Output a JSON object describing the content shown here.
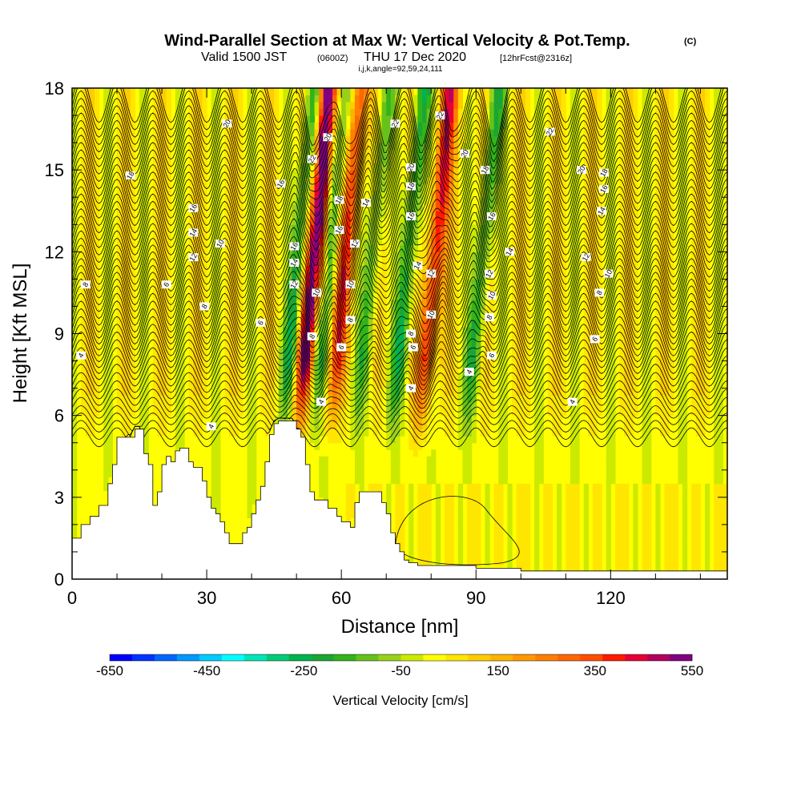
{
  "title": {
    "main": "Wind-Parallel Section at Max W: Vertical Velocity & Pot.Temp.",
    "main_units": "(C)",
    "valid_a": "Valid 1500 JST",
    "valid_b": "(0600Z)",
    "valid_c": "THU 17 Dec 2020",
    "valid_d": "[12hrFcst@2316z]",
    "indices": "i,j,k,angle=92,59,24,111"
  },
  "chart_data": {
    "type": "heatmap",
    "xlabel": "Distance [nm]",
    "ylabel": "Height [Kft MSL]",
    "xlim": [
      0,
      146
    ],
    "ylim": [
      0,
      18
    ],
    "x_ticks": [
      "0",
      "30",
      "60",
      "90",
      "120"
    ],
    "x_tick_values": [
      0,
      30,
      60,
      90,
      120
    ],
    "y_ticks": [
      "0",
      "3",
      "6",
      "9",
      "12",
      "15",
      "18"
    ],
    "y_tick_values": [
      0,
      3,
      6,
      9,
      12,
      15,
      18
    ],
    "terrain": {
      "distance_nm": [
        0,
        2,
        4,
        6,
        8,
        9,
        10,
        11,
        12,
        13,
        14,
        15,
        16,
        17,
        18,
        19,
        20,
        21,
        22,
        23,
        24,
        25,
        26,
        27,
        28,
        29,
        30,
        31,
        32,
        33,
        34,
        35,
        36,
        37,
        38,
        39,
        40,
        41,
        42,
        43,
        44,
        45,
        46,
        47,
        48,
        49,
        50,
        51,
        52,
        53,
        54,
        55,
        56,
        57,
        58,
        59,
        60,
        61,
        62,
        63,
        64,
        65,
        66,
        67,
        68,
        69,
        70,
        71,
        72,
        73,
        74,
        75,
        76,
        77,
        78,
        79,
        80,
        84,
        90,
        94,
        96,
        100,
        110,
        120,
        130,
        140,
        146
      ],
      "height_kft": [
        1.5,
        2.0,
        2.3,
        2.7,
        3.5,
        4.2,
        5.2,
        5.2,
        5.2,
        5.2,
        5.5,
        5.5,
        4.6,
        4.2,
        2.7,
        3.2,
        4.2,
        4.5,
        4.3,
        4.7,
        4.8,
        4.8,
        4.3,
        4.1,
        4.1,
        3.6,
        3.0,
        2.6,
        2.4,
        2.1,
        1.7,
        1.3,
        1.3,
        1.3,
        1.7,
        1.9,
        2.4,
        2.9,
        3.4,
        4.3,
        5.3,
        5.7,
        5.8,
        5.8,
        5.8,
        5.8,
        5.5,
        5.2,
        4.2,
        3.2,
        2.9,
        2.9,
        2.9,
        2.6,
        2.6,
        2.3,
        2.1,
        2.1,
        1.9,
        2.8,
        3.2,
        3.2,
        3.2,
        3.2,
        3.2,
        2.8,
        2.4,
        1.7,
        1.3,
        1.0,
        0.7,
        0.6,
        0.6,
        0.5,
        0.5,
        0.5,
        0.5,
        0.5,
        0.4,
        0.4,
        0.4,
        0.3,
        0.3,
        0.3,
        0.3,
        0.3,
        0.3
      ]
    },
    "vertical_velocity_cells": [
      {
        "x": 53.5,
        "w_max": 520,
        "zone": "upper"
      },
      {
        "x": 57.0,
        "w_max": -260,
        "zone": "upper"
      },
      {
        "x": 60.5,
        "w_max": 330,
        "zone": "upper"
      },
      {
        "x": 66.5,
        "w_max": -220,
        "zone": "upper"
      },
      {
        "x": 74.5,
        "w_max": -300,
        "zone": "upper"
      },
      {
        "x": 80.5,
        "w_max": 380,
        "zone": "upper"
      },
      {
        "x": 91.0,
        "w_max": -270,
        "zone": "upper"
      },
      {
        "x": 50.0,
        "w_max": -290,
        "zone": "upper"
      }
    ],
    "isentrope_labels": {
      "values": [
        "4",
        "6",
        "8",
        "10",
        "12",
        "14",
        "16",
        "18",
        "20",
        "22"
      ],
      "positions": [
        {
          "v": "4",
          "x": 2.0,
          "y": 8.2
        },
        {
          "v": "4",
          "x": 31.0,
          "y": 5.6
        },
        {
          "v": "4",
          "x": 55.5,
          "y": 6.5
        },
        {
          "v": "4",
          "x": 75.5,
          "y": 7.0
        },
        {
          "v": "4",
          "x": 88.5,
          "y": 7.6
        },
        {
          "v": "4",
          "x": 111.5,
          "y": 6.5
        },
        {
          "v": "6",
          "x": 21.0,
          "y": 10.8
        },
        {
          "v": "6",
          "x": 42.0,
          "y": 9.4
        },
        {
          "v": "6",
          "x": 60.0,
          "y": 8.5
        },
        {
          "v": "6",
          "x": 76.0,
          "y": 8.5
        },
        {
          "v": "6",
          "x": 93.5,
          "y": 8.2
        },
        {
          "v": "6",
          "x": 116.5,
          "y": 8.8
        },
        {
          "v": "8",
          "x": 3.0,
          "y": 10.8
        },
        {
          "v": "8",
          "x": 29.5,
          "y": 10.0
        },
        {
          "v": "8",
          "x": 53.5,
          "y": 8.9
        },
        {
          "v": "8",
          "x": 62.0,
          "y": 9.5
        },
        {
          "v": "8",
          "x": 75.5,
          "y": 9.0
        },
        {
          "v": "8",
          "x": 93.0,
          "y": 9.6
        },
        {
          "v": "8",
          "x": 117.5,
          "y": 10.5
        },
        {
          "v": "10",
          "x": 33.0,
          "y": 12.3
        },
        {
          "v": "10",
          "x": 54.5,
          "y": 10.5
        },
        {
          "v": "10",
          "x": 62.0,
          "y": 10.8
        },
        {
          "v": "10",
          "x": 80.0,
          "y": 9.7
        },
        {
          "v": "10",
          "x": 93.5,
          "y": 10.4
        },
        {
          "v": "10",
          "x": 119.5,
          "y": 11.2
        },
        {
          "v": "12",
          "x": 27.0,
          "y": 11.8
        },
        {
          "v": "12",
          "x": 49.5,
          "y": 10.8
        },
        {
          "v": "12",
          "x": 63.0,
          "y": 12.3
        },
        {
          "v": "12",
          "x": 80.0,
          "y": 11.2
        },
        {
          "v": "12",
          "x": 93.0,
          "y": 11.2
        },
        {
          "v": "12",
          "x": 114.5,
          "y": 11.8
        },
        {
          "v": "14",
          "x": 27.0,
          "y": 12.7
        },
        {
          "v": "14",
          "x": 49.5,
          "y": 11.6
        },
        {
          "v": "14",
          "x": 65.5,
          "y": 13.8
        },
        {
          "v": "14",
          "x": 77.0,
          "y": 11.5
        },
        {
          "v": "14",
          "x": 97.5,
          "y": 12.0
        },
        {
          "v": "14",
          "x": 118.0,
          "y": 13.5
        },
        {
          "v": "16",
          "x": 27.0,
          "y": 13.6
        },
        {
          "v": "16",
          "x": 46.5,
          "y": 14.5
        },
        {
          "v": "16",
          "x": 49.5,
          "y": 12.2
        },
        {
          "v": "16",
          "x": 59.5,
          "y": 12.8
        },
        {
          "v": "16",
          "x": 75.5,
          "y": 13.3
        },
        {
          "v": "16",
          "x": 93.5,
          "y": 13.3
        },
        {
          "v": "16",
          "x": 118.5,
          "y": 14.3
        },
        {
          "v": "18",
          "x": 13.0,
          "y": 14.8
        },
        {
          "v": "18",
          "x": 59.5,
          "y": 13.9
        },
        {
          "v": "18",
          "x": 75.5,
          "y": 14.4
        },
        {
          "v": "18",
          "x": 92.0,
          "y": 15.0
        },
        {
          "v": "18",
          "x": 118.5,
          "y": 14.9
        },
        {
          "v": "20",
          "x": 34.5,
          "y": 16.7
        },
        {
          "v": "20",
          "x": 57.0,
          "y": 16.2
        },
        {
          "v": "20",
          "x": 75.5,
          "y": 15.1
        },
        {
          "v": "20",
          "x": 87.5,
          "y": 15.6
        },
        {
          "v": "20",
          "x": 113.5,
          "y": 15.0
        },
        {
          "v": "22",
          "x": 53.5,
          "y": 15.4
        },
        {
          "v": "22",
          "x": 72.0,
          "y": 16.7
        },
        {
          "v": "22",
          "x": 82.0,
          "y": 17.0
        },
        {
          "v": "22",
          "x": 106.5,
          "y": 16.4
        }
      ]
    }
  },
  "colorbar": {
    "label": "Vertical Velocity [cm/s]",
    "ticks": [
      "-650",
      "-450",
      "-250",
      "-50",
      "150",
      "350",
      "550"
    ],
    "tick_values": [
      -650,
      -450,
      -250,
      -50,
      150,
      350,
      550
    ],
    "min": -650,
    "max": 550,
    "step": 50,
    "colors": [
      "#0000ff",
      "#0033ff",
      "#0066ff",
      "#0099ff",
      "#00ccff",
      "#00ffff",
      "#00e6b8",
      "#00cc77",
      "#00b34d",
      "#1aa633",
      "#33b31a",
      "#66c21a",
      "#99d11a",
      "#ccea00",
      "#ffff00",
      "#ffe600",
      "#ffcc00",
      "#ffb300",
      "#ff9900",
      "#ff7f00",
      "#ff6600",
      "#ff4d00",
      "#ff1a00",
      "#e60033",
      "#b3005e",
      "#800080"
    ]
  }
}
